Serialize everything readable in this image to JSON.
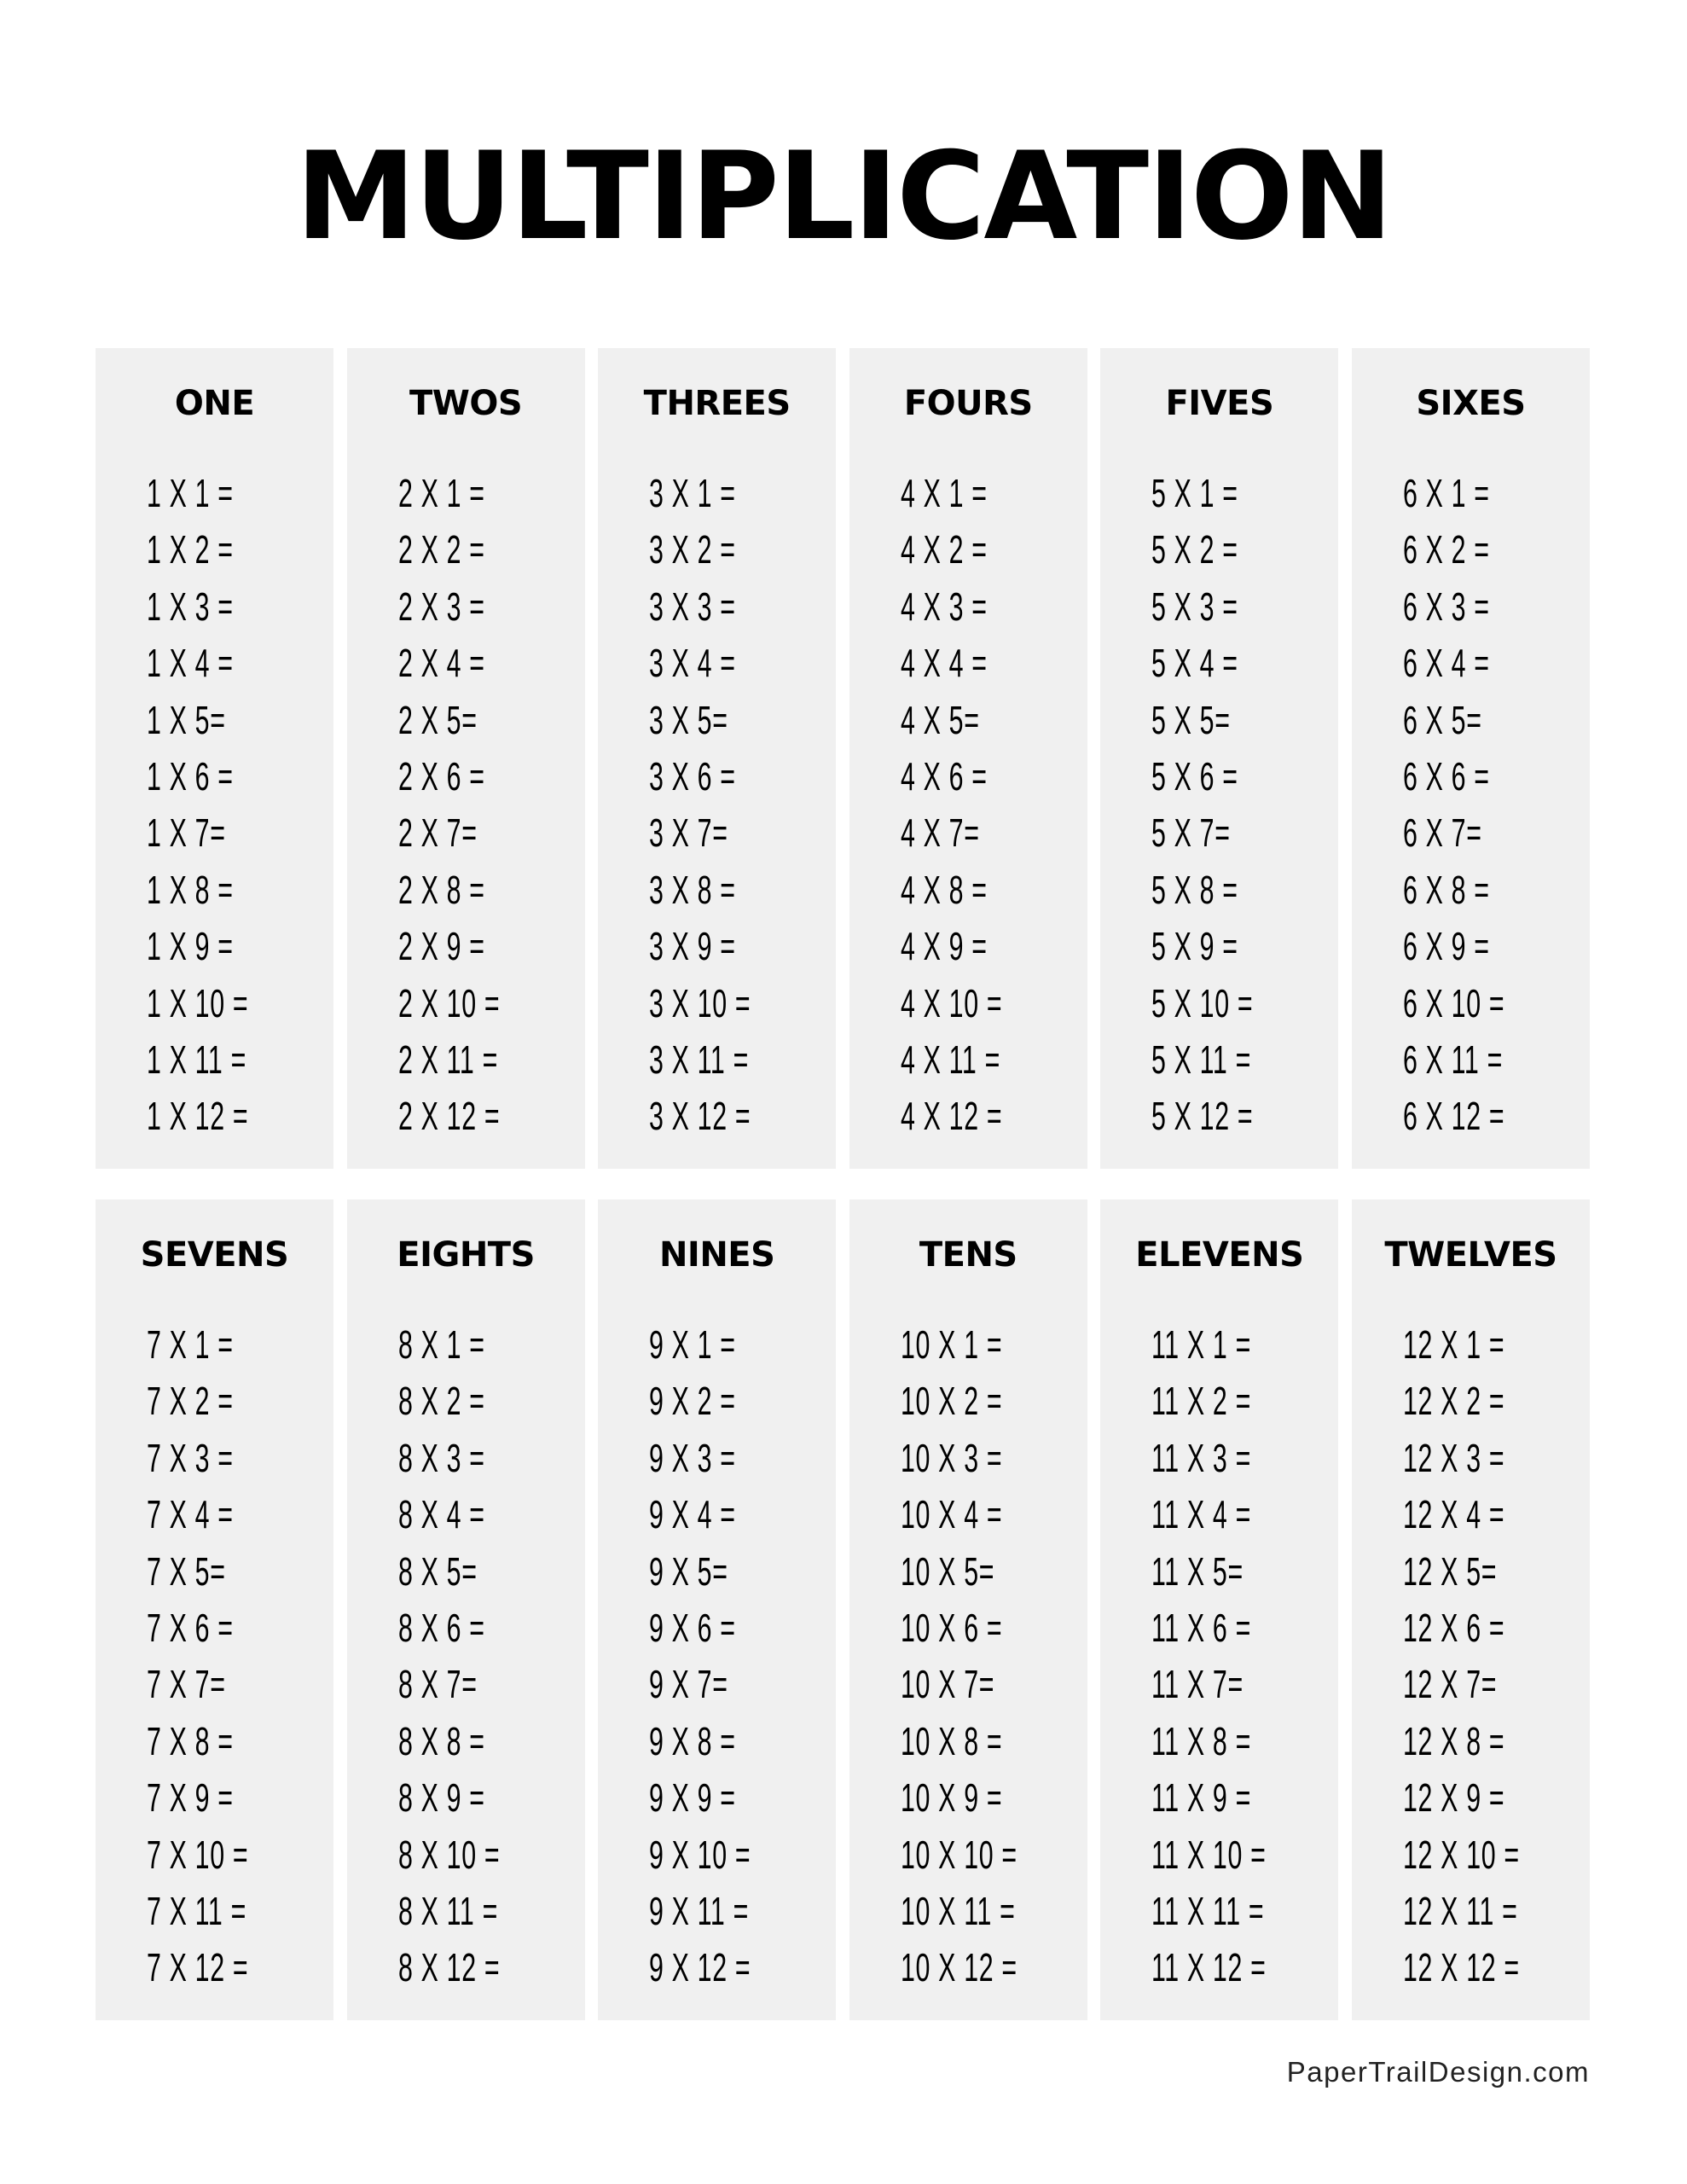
{
  "title": "MULTIPLICATION",
  "tables": [
    {
      "heading": "ONE",
      "facts": [
        "1 X 1 =",
        "1 X 2 =",
        "1 X 3 =",
        "1 X 4 =",
        "1 X 5=",
        "1 X 6 =",
        "1 X 7=",
        "1 X 8 =",
        "1 X 9 =",
        "1 X 10 =",
        "1 X 11 =",
        "1 X 12 ="
      ]
    },
    {
      "heading": "TWOS",
      "facts": [
        "2 X 1 =",
        "2 X 2 =",
        "2 X 3 =",
        "2 X 4 =",
        "2 X 5=",
        "2 X 6 =",
        "2 X 7=",
        "2 X 8 =",
        "2 X 9 =",
        "2 X 10 =",
        "2 X 11 =",
        "2 X 12 ="
      ]
    },
    {
      "heading": "THREES",
      "facts": [
        "3 X 1 =",
        "3 X 2 =",
        "3 X 3 =",
        "3 X 4 =",
        "3 X 5=",
        "3 X 6 =",
        "3 X 7=",
        "3 X 8 =",
        "3 X 9 =",
        "3 X 10 =",
        "3 X 11 =",
        "3 X 12 ="
      ]
    },
    {
      "heading": "FOURS",
      "facts": [
        "4 X 1 =",
        "4 X 2 =",
        "4 X 3 =",
        "4 X 4 =",
        "4 X 5=",
        "4 X 6 =",
        "4 X 7=",
        "4 X 8 =",
        "4 X 9 =",
        "4 X 10 =",
        "4 X 11 =",
        "4 X 12 ="
      ]
    },
    {
      "heading": "FIVES",
      "facts": [
        "5 X 1 =",
        "5 X 2 =",
        "5 X 3 =",
        "5 X 4 =",
        "5 X 5=",
        "5 X 6 =",
        "5 X 7=",
        "5 X 8 =",
        "5 X 9 =",
        "5 X 10 =",
        "5 X 11 =",
        "5 X 12 ="
      ]
    },
    {
      "heading": "SIXES",
      "facts": [
        "6 X 1 =",
        "6 X 2 =",
        "6 X 3 =",
        "6 X 4 =",
        "6 X 5=",
        "6 X 6 =",
        "6 X 7=",
        "6 X 8 =",
        "6 X 9 =",
        "6 X 10 =",
        "6 X 11 =",
        "6 X 12 ="
      ]
    },
    {
      "heading": "SEVENS",
      "facts": [
        "7 X 1 =",
        "7 X 2 =",
        "7 X 3 =",
        "7 X 4 =",
        "7 X 5=",
        "7 X 6 =",
        "7 X 7=",
        "7 X 8 =",
        "7 X 9 =",
        "7 X 10 =",
        "7 X 11 =",
        "7 X 12 ="
      ]
    },
    {
      "heading": "EIGHTS",
      "facts": [
        "8 X 1 =",
        "8 X 2 =",
        "8 X 3 =",
        "8 X 4 =",
        "8 X 5=",
        "8 X 6 =",
        "8 X 7=",
        "8 X 8 =",
        "8 X 9 =",
        "8 X 10 =",
        "8 X 11 =",
        "8 X 12 ="
      ]
    },
    {
      "heading": "NINES",
      "facts": [
        "9 X 1 =",
        "9 X 2 =",
        "9 X 3 =",
        "9 X 4 =",
        "9 X 5=",
        "9 X 6 =",
        "9 X 7=",
        "9 X 8 =",
        "9 X 9 =",
        "9 X 10 =",
        "9 X 11 =",
        "9 X 12 ="
      ]
    },
    {
      "heading": "TENS",
      "facts": [
        "10 X 1 =",
        "10 X 2 =",
        "10 X 3 =",
        "10 X 4 =",
        "10 X 5=",
        "10 X 6 =",
        "10 X 7=",
        "10 X 8 =",
        "10 X 9 =",
        "10 X 10 =",
        "10 X 11 =",
        "10 X 12 ="
      ]
    },
    {
      "heading": "ELEVENS",
      "facts": [
        "11 X 1 =",
        "11 X 2 =",
        "11 X 3 =",
        "11 X 4 =",
        "11 X 5=",
        "11 X 6 =",
        "11 X 7=",
        "11 X 8 =",
        "11 X 9 =",
        "11 X 10 =",
        "11 X 11 =",
        "11 X 12 ="
      ]
    },
    {
      "heading": "TWELVES",
      "facts": [
        "12 X 1 =",
        "12 X 2 =",
        "12 X 3 =",
        "12 X 4 =",
        "12 X 5=",
        "12 X 6 =",
        "12 X 7=",
        "12 X 8 =",
        "12 X 9 =",
        "12 X 10 =",
        "12 X 11 =",
        "12 X 12 ="
      ]
    }
  ],
  "footer": "PaperTrailDesign.com",
  "colors": {
    "panel_bg": "#f0f0f0",
    "text": "#000000"
  }
}
